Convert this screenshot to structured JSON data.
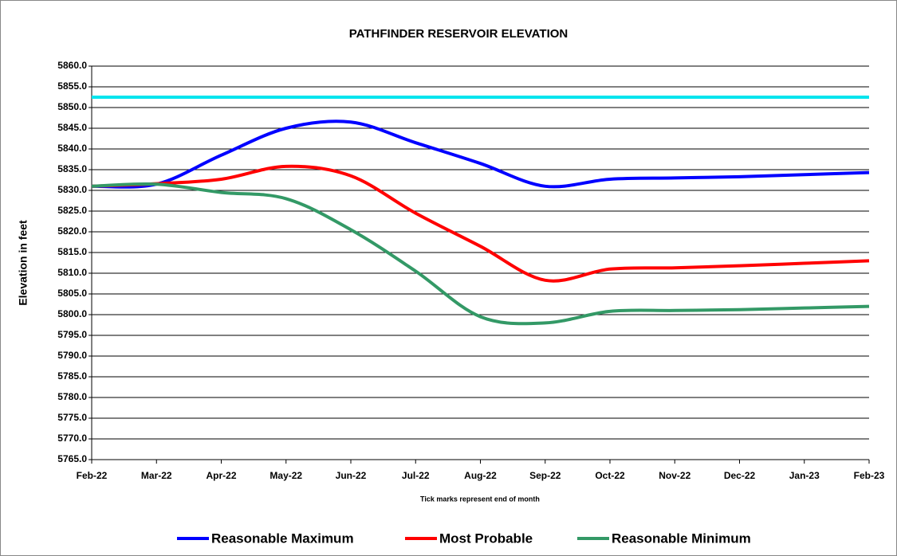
{
  "chart_data": {
    "type": "line",
    "title": "PATHFINDER RESERVOIR ELEVATION",
    "y_label": "Elevation in feet",
    "x_note": "Tick marks represent end of month",
    "categories": [
      "Feb-22",
      "Mar-22",
      "Apr-22",
      "May-22",
      "Jun-22",
      "Jul-22",
      "Aug-22",
      "Sep-22",
      "Oct-22",
      "Nov-22",
      "Dec-22",
      "Jan-23",
      "Feb-23"
    ],
    "series": [
      {
        "color": "#00e5ee",
        "values": [
          5852.5,
          5852.5,
          5852.5,
          5852.5,
          5852.5,
          5852.5,
          5852.5,
          5852.5,
          5852.5,
          5852.5,
          5852.5,
          5852.5,
          5852.5
        ]
      },
      {
        "name": "Reasonable Maximum",
        "color": "#0000ff",
        "values": [
          5831,
          5831.5,
          5838.5,
          5845,
          5846.5,
          5841.5,
          5836.5,
          5831,
          5832.7,
          5833,
          5833.3,
          5833.8,
          5834.3
        ]
      },
      {
        "name": "Most Probable",
        "color": "#ff0000",
        "values": [
          5831,
          5831.6,
          5832.7,
          5835.8,
          5833.5,
          5824.5,
          5816.5,
          5808.3,
          5811,
          5811.3,
          5811.8,
          5812.4,
          5813
        ]
      },
      {
        "name": "Reasonable Minimum",
        "color": "#339966",
        "values": [
          5831,
          5831.5,
          5829.5,
          5828,
          5820.5,
          5810.5,
          5799.5,
          5798,
          5800.8,
          5801,
          5801.2,
          5801.6,
          5802
        ]
      }
    ],
    "ylim": [
      5765,
      5860
    ],
    "yticks": [
      {
        "value": 5765,
        "label": "5765.0"
      },
      {
        "value": 5770,
        "label": "5770.0"
      },
      {
        "value": 5775,
        "label": "5775.0"
      },
      {
        "value": 5780,
        "label": "5780.0"
      },
      {
        "value": 5785,
        "label": "5785.0"
      },
      {
        "value": 5790,
        "label": "5790.0"
      },
      {
        "value": 5795,
        "label": "5795.0"
      },
      {
        "value": 5800,
        "label": "5800.0"
      },
      {
        "value": 5805,
        "label": "5805.0"
      },
      {
        "value": 5810,
        "label": "5810.0"
      },
      {
        "value": 5815,
        "label": "5815.0"
      },
      {
        "value": 5820,
        "label": "5820.0"
      },
      {
        "value": 5825,
        "label": "5825.0"
      },
      {
        "value": 5830,
        "label": "5830.0"
      },
      {
        "value": 5835,
        "label": "5835.0"
      },
      {
        "value": 5840,
        "label": "5840.0"
      },
      {
        "value": 5845,
        "label": "5845.0"
      },
      {
        "value": 5850,
        "label": "5850.0"
      },
      {
        "value": 5855,
        "label": "5855.0"
      },
      {
        "value": 5860,
        "label": "5860.0"
      }
    ],
    "grid": true
  }
}
